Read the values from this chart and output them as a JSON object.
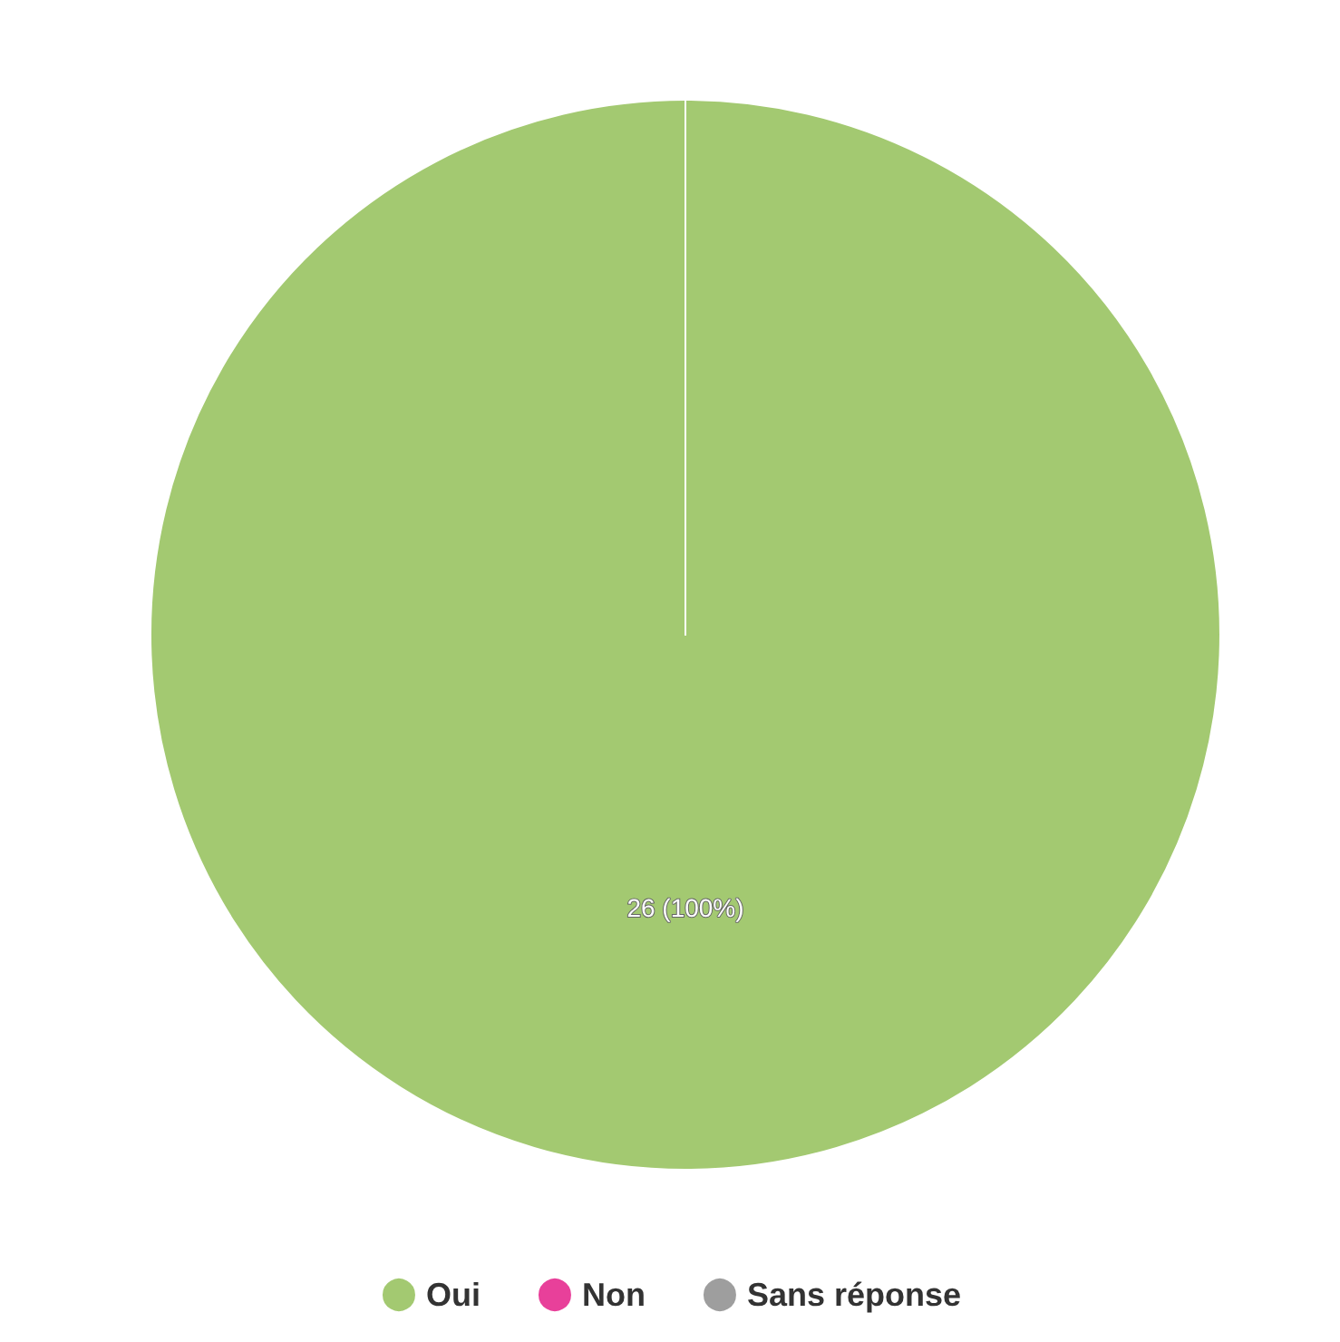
{
  "chart_data": {
    "type": "pie",
    "categories": [
      "Oui",
      "Non",
      "Sans réponse"
    ],
    "values": [
      26,
      0,
      0
    ],
    "colors": [
      "#a3c971",
      "#e8409a",
      "#9e9e9e"
    ],
    "value_labels": [
      "26 (100%)",
      null,
      null
    ],
    "legend": "bottom"
  }
}
